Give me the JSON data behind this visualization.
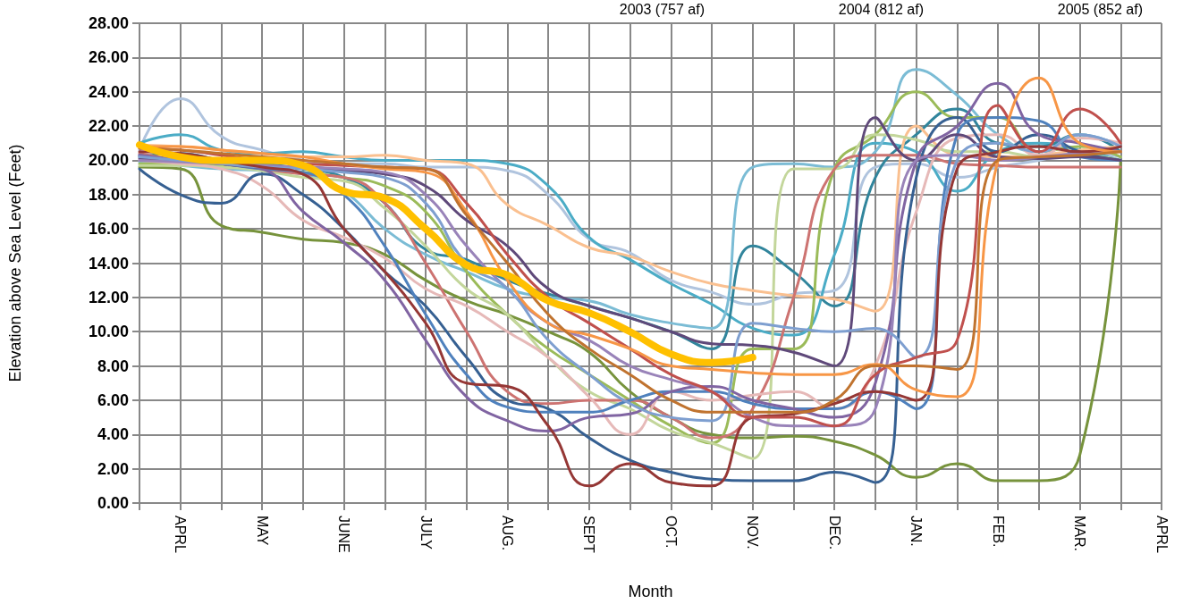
{
  "chart_data": {
    "type": "line",
    "xlabel": "Month",
    "ylabel": "Elevation above Sea Level (Feet)",
    "annotations": [
      "2003 (757 af)",
      "2004 (812 af)",
      "2005 (852 af)"
    ],
    "categories": [
      null,
      "APRL",
      null,
      "MAY",
      null,
      "JUNE",
      null,
      "JULY",
      null,
      "AUG.",
      null,
      "SEPT",
      null,
      "OCT.",
      null,
      "NOV.",
      null,
      "DEC.",
      null,
      "JAN.",
      null,
      "FEB.",
      null,
      "MAR.",
      null,
      "APRL"
    ],
    "ylim": [
      0,
      28
    ],
    "yticks": [
      {
        "value": 0,
        "label": "0.00"
      },
      {
        "value": 2,
        "label": "2.00"
      },
      {
        "value": 4,
        "label": "4.00"
      },
      {
        "value": 6,
        "label": "6.00"
      },
      {
        "value": 8,
        "label": "8.00"
      },
      {
        "value": 10,
        "label": "10.00"
      },
      {
        "value": 12,
        "label": "12.00"
      },
      {
        "value": 14,
        "label": "14.00"
      },
      {
        "value": 16,
        "label": "16.00"
      },
      {
        "value": 18,
        "label": "18.00"
      },
      {
        "value": 20,
        "label": "20.00"
      },
      {
        "value": 22,
        "label": "22.00"
      },
      {
        "value": 24,
        "label": "24.00"
      },
      {
        "value": 26,
        "label": "26.00"
      },
      {
        "value": 28,
        "label": "28.00"
      }
    ],
    "grid": true,
    "marker": "none",
    "line_style": "solid",
    "series": [
      {
        "color": "#b0c4de",
        "values": [
          20.6,
          23.6,
          21.4,
          20.6,
          20.0,
          19.8,
          19.8,
          19.6,
          19.6,
          19.4,
          18.0,
          15.4,
          14.6,
          13.0,
          12.3,
          11.6,
          12.2,
          12.4,
          19.6,
          19.8,
          19.0,
          19.6,
          20.0,
          20.5,
          20.2,
          null
        ]
      },
      {
        "color": "#4bacc6",
        "values": [
          21.0,
          21.5,
          20.6,
          20.4,
          20.5,
          20.2,
          20.0,
          20.0,
          20.0,
          19.8,
          18.5,
          15.5,
          14.2,
          12.8,
          11.6,
          10.2,
          9.8,
          14.5,
          21.0,
          20.5,
          18.2,
          20.5,
          21.0,
          20.6,
          20.0,
          null
        ]
      },
      {
        "color": "#31859c",
        "values": [
          20.2,
          20.4,
          20.0,
          19.8,
          19.5,
          19.0,
          17.5,
          14.8,
          14.2,
          13.0,
          12.2,
          11.5,
          10.8,
          10.0,
          9.0,
          15.0,
          13.5,
          11.5,
          19.0,
          21.5,
          23.0,
          21.0,
          20.8,
          21.5,
          20.5,
          null
        ]
      },
      {
        "color": "#fac090",
        "values": [
          20.9,
          20.8,
          20.6,
          20.4,
          20.2,
          20.2,
          20.3,
          20.0,
          19.8,
          17.4,
          16.2,
          14.9,
          14.4,
          13.5,
          12.8,
          12.4,
          12.1,
          11.9,
          11.2,
          22.0,
          20.3,
          20.2,
          20.3,
          20.6,
          20.8,
          null
        ]
      },
      {
        "color": "#7bbcd5",
        "values": [
          19.9,
          19.7,
          19.5,
          19.4,
          19.2,
          18.2,
          16.0,
          14.5,
          13.5,
          12.5,
          12.0,
          11.8,
          11.0,
          10.5,
          10.2,
          19.6,
          19.8,
          19.6,
          20.5,
          25.3,
          23.8,
          21.5,
          20.5,
          21.5,
          20.8,
          null
        ]
      },
      {
        "color": "#77933c",
        "values": [
          19.6,
          19.5,
          16.2,
          15.8,
          15.4,
          15.2,
          14.5,
          13.0,
          11.8,
          11.0,
          10.0,
          8.8,
          6.5,
          5.0,
          4.0,
          3.8,
          3.9,
          3.6,
          2.8,
          1.5,
          2.3,
          1.3,
          1.3,
          2.8,
          20.0,
          null
        ]
      },
      {
        "color": "#9bbb59",
        "values": [
          19.8,
          19.8,
          19.7,
          19.6,
          19.3,
          19.0,
          18.5,
          17.0,
          13.5,
          11.0,
          9.0,
          7.5,
          6.0,
          4.5,
          3.5,
          9.0,
          9.0,
          19.5,
          21.5,
          24.0,
          22.5,
          22.5,
          20.5,
          20.8,
          20.2,
          null
        ]
      },
      {
        "color": "#c3d69b",
        "values": [
          19.7,
          19.7,
          19.6,
          19.4,
          19.0,
          18.8,
          17.2,
          15.0,
          12.5,
          11.0,
          8.5,
          6.5,
          5.5,
          4.2,
          3.5,
          2.6,
          19.5,
          19.5,
          21.5,
          21.2,
          20.5,
          20.5,
          20.2,
          20.3,
          20.0,
          null
        ]
      },
      {
        "color": "#cd7371",
        "values": [
          20.4,
          20.0,
          19.8,
          19.5,
          19.2,
          19.0,
          17.5,
          14.0,
          10.0,
          6.5,
          5.8,
          6.0,
          6.0,
          5.0,
          3.8,
          5.5,
          12.0,
          19.5,
          20.3,
          20.3,
          19.8,
          19.7,
          19.6,
          19.6,
          19.6,
          null
        ]
      },
      {
        "color": "#e6b9b8",
        "values": [
          20.0,
          19.8,
          19.5,
          18.5,
          16.5,
          15.5,
          14.3,
          12.5,
          11.5,
          10.0,
          8.5,
          6.2,
          4.0,
          6.5,
          6.0,
          6.3,
          6.5,
          5.5,
          8.0,
          17.0,
          21.3,
          21.5,
          20.3,
          21.3,
          21.0,
          null
        ]
      },
      {
        "color": "#366092",
        "values": [
          19.5,
          18.0,
          17.5,
          19.2,
          18.0,
          16.0,
          13.5,
          11.5,
          8.5,
          6.0,
          5.5,
          3.8,
          2.5,
          1.8,
          1.4,
          1.3,
          1.3,
          1.8,
          1.2,
          19.0,
          22.5,
          20.5,
          21.5,
          20.5,
          20.0,
          null
        ]
      },
      {
        "color": "#4f81bd",
        "values": [
          20.3,
          20.0,
          19.8,
          19.5,
          19.3,
          18.0,
          15.0,
          11.0,
          7.5,
          5.6,
          5.3,
          5.3,
          6.0,
          6.5,
          6.5,
          5.8,
          5.5,
          5.5,
          6.5,
          5.5,
          21.5,
          22.5,
          22.3,
          20.2,
          20.0,
          null
        ]
      },
      {
        "color": "#8064a2",
        "values": [
          20.3,
          20.0,
          19.8,
          19.5,
          17.0,
          15.2,
          13.0,
          9.5,
          6.2,
          4.8,
          4.2,
          5.0,
          5.2,
          6.5,
          6.8,
          6.0,
          5.5,
          5.0,
          7.0,
          20.0,
          22.0,
          24.5,
          21.5,
          21.0,
          20.5,
          null
        ]
      },
      {
        "color": "#5f497a",
        "values": [
          20.1,
          20.0,
          19.8,
          19.6,
          19.6,
          19.4,
          19.2,
          18.5,
          16.5,
          15.0,
          12.5,
          11.5,
          10.8,
          10.0,
          9.3,
          9.2,
          8.8,
          8.0,
          22.5,
          20.0,
          21.5,
          20.2,
          20.1,
          20.2,
          20.0,
          null
        ]
      },
      {
        "color": "#9983b9",
        "values": [
          20.0,
          19.9,
          19.8,
          19.7,
          19.6,
          19.5,
          19.3,
          18.0,
          15.0,
          12.5,
          10.5,
          9.5,
          8.0,
          7.2,
          6.5,
          5.0,
          4.5,
          4.5,
          5.5,
          20.0,
          20.3,
          20.0,
          20.2,
          20.4,
          20.5,
          null
        ]
      },
      {
        "color": "#7e9fd0",
        "values": [
          20.2,
          20.0,
          19.8,
          19.6,
          19.5,
          19.3,
          19.0,
          17.5,
          14.0,
          12.5,
          9.5,
          7.5,
          5.8,
          5.0,
          4.8,
          10.5,
          10.2,
          10.0,
          10.2,
          8.5,
          20.0,
          21.0,
          20.5,
          21.5,
          20.8,
          null
        ]
      },
      {
        "color": "#953735",
        "values": [
          20.5,
          20.4,
          20.0,
          19.6,
          19.2,
          16.0,
          13.5,
          10.5,
          7.0,
          6.8,
          4.5,
          1.0,
          2.3,
          1.2,
          1.0,
          5.0,
          5.2,
          5.8,
          6.5,
          6.0,
          19.5,
          20.5,
          20.8,
          20.5,
          20.8,
          null
        ]
      },
      {
        "color": "#c0504d",
        "values": [
          20.7,
          20.6,
          20.3,
          20.0,
          19.8,
          19.7,
          19.6,
          19.5,
          17.5,
          14.5,
          12.0,
          10.5,
          9.0,
          7.5,
          6.5,
          5.0,
          5.0,
          4.5,
          7.5,
          8.5,
          9.5,
          23.2,
          20.5,
          23.0,
          21.0,
          null
        ]
      },
      {
        "color": "#f79646",
        "values": [
          20.8,
          20.8,
          20.6,
          20.4,
          20.2,
          19.8,
          19.5,
          19.3,
          17.0,
          13.0,
          10.5,
          9.8,
          9.0,
          8.0,
          7.8,
          7.6,
          7.5,
          7.5,
          8.1,
          6.6,
          6.2,
          20.0,
          24.8,
          21.0,
          20.5,
          null
        ]
      },
      {
        "color": "#c0732f",
        "values": [
          20.7,
          20.6,
          20.4,
          20.2,
          20.0,
          19.8,
          19.6,
          19.5,
          16.8,
          14.0,
          11.0,
          9.0,
          7.5,
          6.0,
          5.3,
          5.3,
          5.3,
          6.0,
          8.0,
          8.0,
          7.8,
          20.0,
          20.2,
          20.3,
          20.5,
          null
        ]
      },
      {
        "color": "#ffc000",
        "values": [
          20.9,
          20.2,
          20.0,
          20.0,
          19.7,
          18.2,
          17.8,
          16.0,
          13.9,
          13.3,
          11.8,
          11.1,
          10.0,
          8.7,
          8.2,
          8.5,
          null,
          null,
          null,
          null,
          null,
          null,
          null,
          null,
          null,
          null
        ]
      }
    ]
  }
}
